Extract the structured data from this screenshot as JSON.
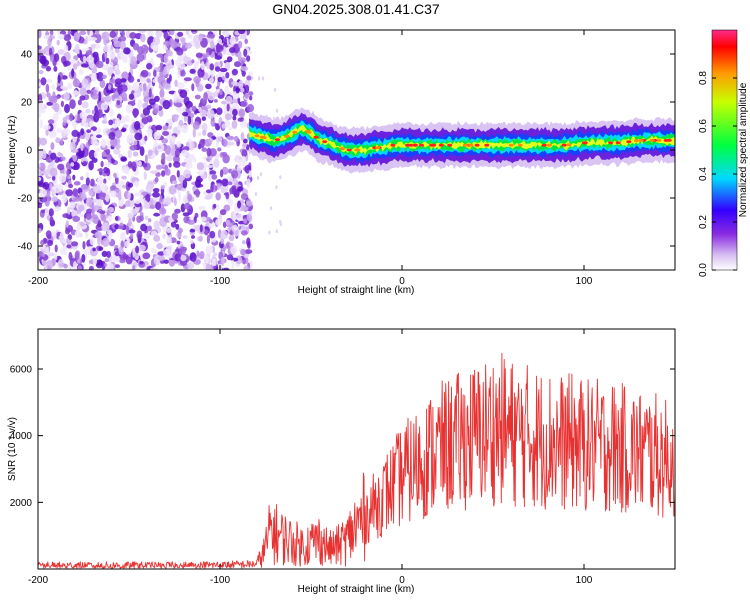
{
  "title": "GN04.2025.308.01.41.C37",
  "colors": {
    "snr_line": "#e83232",
    "noise": "#6a1fd0",
    "background": "#ffffff"
  },
  "chart_data": [
    {
      "type": "heatmap",
      "name": "spectrogram",
      "xlabel": "Height of straight line (km)",
      "ylabel": "Frequency (Hz)",
      "xlim": [
        -200,
        150
      ],
      "ylim": [
        -50,
        50
      ],
      "xticks": [
        -200,
        -100,
        0,
        100
      ],
      "xtick_labels": [
        "-200",
        "-100",
        "0",
        "100"
      ],
      "yticks": [
        -40,
        -20,
        0,
        20,
        40
      ],
      "ytick_labels": [
        "-40",
        "-20",
        "0",
        "20",
        "40"
      ],
      "noise_region_x": [
        -200,
        -83
      ],
      "ridge": {
        "x": [
          -84,
          -80,
          -75,
          -70,
          -65,
          -60,
          -55,
          -50,
          -45,
          -40,
          -35,
          -30,
          -25,
          -20,
          -15,
          -10,
          -5,
          0,
          10,
          20,
          30,
          40,
          50,
          60,
          70,
          80,
          90,
          100,
          110,
          120,
          130,
          140,
          150
        ],
        "freq_hz": [
          7,
          6,
          5,
          4,
          5,
          7,
          9,
          7,
          4,
          3,
          1,
          0,
          0,
          0,
          1,
          1,
          2,
          2,
          2,
          2,
          2,
          2,
          2,
          2,
          2,
          2,
          2,
          3,
          3,
          3,
          4,
          4,
          4
        ]
      },
      "colorbar": {
        "label": "Normalized spectral amplitude",
        "range": [
          0,
          1
        ],
        "ticks": [
          0.0,
          0.2,
          0.4,
          0.6,
          0.8
        ],
        "tick_labels": [
          "0.0",
          "0.2",
          "0.4",
          "0.6",
          "0.8"
        ]
      }
    },
    {
      "type": "line",
      "name": "snr",
      "xlabel": "Height of straight line (km)",
      "ylabel": "SNR (10 * v/v)",
      "xlim": [
        -200,
        150
      ],
      "ylim": [
        0,
        7200
      ],
      "xticks": [
        -200,
        -100,
        0,
        100
      ],
      "xtick_labels": [
        "-200",
        "-100",
        "0",
        "100"
      ],
      "yticks": [
        2000,
        4000,
        6000
      ],
      "ytick_labels": [
        "2000",
        "4000",
        "6000"
      ],
      "series": [
        {
          "name": "SNR",
          "x": [
            -200,
            -180,
            -160,
            -140,
            -120,
            -100,
            -90,
            -80,
            -76,
            -72,
            -68,
            -64,
            -60,
            -55,
            -50,
            -45,
            -40,
            -35,
            -30,
            -25,
            -20,
            -15,
            -10,
            -5,
            0,
            5,
            10,
            15,
            20,
            25,
            30,
            35,
            40,
            45,
            50,
            55,
            60,
            65,
            70,
            75,
            80,
            85,
            90,
            95,
            100,
            105,
            110,
            115,
            120,
            125,
            130,
            135,
            140,
            145,
            150
          ],
          "values": [
            100,
            100,
            100,
            100,
            100,
            120,
            130,
            150,
            500,
            1200,
            1000,
            900,
            800,
            700,
            800,
            900,
            600,
            700,
            900,
            1300,
            1600,
            1900,
            2200,
            2500,
            2800,
            3000,
            3200,
            3400,
            3600,
            3700,
            3800,
            3900,
            4000,
            4100,
            4200,
            4200,
            4100,
            4000,
            4000,
            3900,
            3900,
            3800,
            3800,
            3800,
            3700,
            3700,
            3700,
            3700,
            3600,
            3600,
            3500,
            3500,
            3400,
            3300,
            3300
          ]
        }
      ]
    }
  ]
}
